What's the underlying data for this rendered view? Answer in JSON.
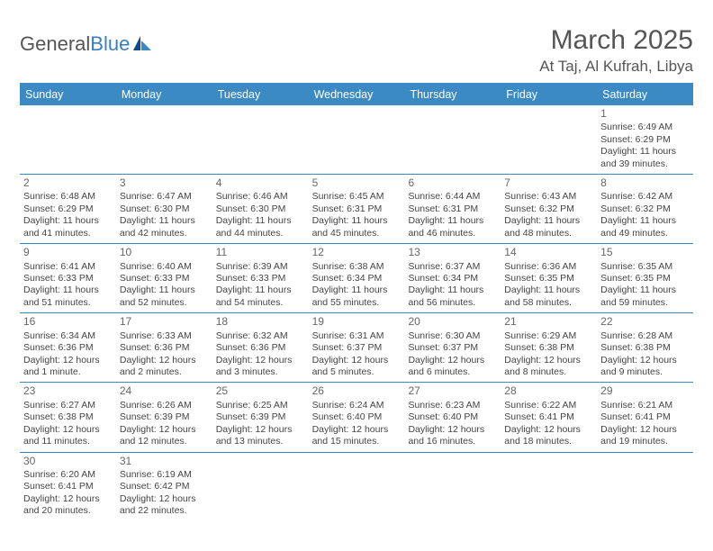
{
  "brand": {
    "name1": "General",
    "name2": "Blue"
  },
  "title": "March 2025",
  "location": "At Taj, Al Kufrah, Libya",
  "colors": {
    "header_bg": "#3b8ac4",
    "header_text": "#ffffff",
    "grid_line": "#3b8ac4",
    "text": "#444444",
    "title_text": "#555555"
  },
  "weekdays": [
    "Sunday",
    "Monday",
    "Tuesday",
    "Wednesday",
    "Thursday",
    "Friday",
    "Saturday"
  ],
  "weeks": [
    [
      {
        "empty": true
      },
      {
        "empty": true
      },
      {
        "empty": true
      },
      {
        "empty": true
      },
      {
        "empty": true
      },
      {
        "empty": true
      },
      {
        "day": "1",
        "sunrise": "Sunrise: 6:49 AM",
        "sunset": "Sunset: 6:29 PM",
        "daylight": "Daylight: 11 hours and 39 minutes."
      }
    ],
    [
      {
        "day": "2",
        "sunrise": "Sunrise: 6:48 AM",
        "sunset": "Sunset: 6:29 PM",
        "daylight": "Daylight: 11 hours and 41 minutes."
      },
      {
        "day": "3",
        "sunrise": "Sunrise: 6:47 AM",
        "sunset": "Sunset: 6:30 PM",
        "daylight": "Daylight: 11 hours and 42 minutes."
      },
      {
        "day": "4",
        "sunrise": "Sunrise: 6:46 AM",
        "sunset": "Sunset: 6:30 PM",
        "daylight": "Daylight: 11 hours and 44 minutes."
      },
      {
        "day": "5",
        "sunrise": "Sunrise: 6:45 AM",
        "sunset": "Sunset: 6:31 PM",
        "daylight": "Daylight: 11 hours and 45 minutes."
      },
      {
        "day": "6",
        "sunrise": "Sunrise: 6:44 AM",
        "sunset": "Sunset: 6:31 PM",
        "daylight": "Daylight: 11 hours and 46 minutes."
      },
      {
        "day": "7",
        "sunrise": "Sunrise: 6:43 AM",
        "sunset": "Sunset: 6:32 PM",
        "daylight": "Daylight: 11 hours and 48 minutes."
      },
      {
        "day": "8",
        "sunrise": "Sunrise: 6:42 AM",
        "sunset": "Sunset: 6:32 PM",
        "daylight": "Daylight: 11 hours and 49 minutes."
      }
    ],
    [
      {
        "day": "9",
        "sunrise": "Sunrise: 6:41 AM",
        "sunset": "Sunset: 6:33 PM",
        "daylight": "Daylight: 11 hours and 51 minutes."
      },
      {
        "day": "10",
        "sunrise": "Sunrise: 6:40 AM",
        "sunset": "Sunset: 6:33 PM",
        "daylight": "Daylight: 11 hours and 52 minutes."
      },
      {
        "day": "11",
        "sunrise": "Sunrise: 6:39 AM",
        "sunset": "Sunset: 6:33 PM",
        "daylight": "Daylight: 11 hours and 54 minutes."
      },
      {
        "day": "12",
        "sunrise": "Sunrise: 6:38 AM",
        "sunset": "Sunset: 6:34 PM",
        "daylight": "Daylight: 11 hours and 55 minutes."
      },
      {
        "day": "13",
        "sunrise": "Sunrise: 6:37 AM",
        "sunset": "Sunset: 6:34 PM",
        "daylight": "Daylight: 11 hours and 56 minutes."
      },
      {
        "day": "14",
        "sunrise": "Sunrise: 6:36 AM",
        "sunset": "Sunset: 6:35 PM",
        "daylight": "Daylight: 11 hours and 58 minutes."
      },
      {
        "day": "15",
        "sunrise": "Sunrise: 6:35 AM",
        "sunset": "Sunset: 6:35 PM",
        "daylight": "Daylight: 11 hours and 59 minutes."
      }
    ],
    [
      {
        "day": "16",
        "sunrise": "Sunrise: 6:34 AM",
        "sunset": "Sunset: 6:36 PM",
        "daylight": "Daylight: 12 hours and 1 minute."
      },
      {
        "day": "17",
        "sunrise": "Sunrise: 6:33 AM",
        "sunset": "Sunset: 6:36 PM",
        "daylight": "Daylight: 12 hours and 2 minutes."
      },
      {
        "day": "18",
        "sunrise": "Sunrise: 6:32 AM",
        "sunset": "Sunset: 6:36 PM",
        "daylight": "Daylight: 12 hours and 3 minutes."
      },
      {
        "day": "19",
        "sunrise": "Sunrise: 6:31 AM",
        "sunset": "Sunset: 6:37 PM",
        "daylight": "Daylight: 12 hours and 5 minutes."
      },
      {
        "day": "20",
        "sunrise": "Sunrise: 6:30 AM",
        "sunset": "Sunset: 6:37 PM",
        "daylight": "Daylight: 12 hours and 6 minutes."
      },
      {
        "day": "21",
        "sunrise": "Sunrise: 6:29 AM",
        "sunset": "Sunset: 6:38 PM",
        "daylight": "Daylight: 12 hours and 8 minutes."
      },
      {
        "day": "22",
        "sunrise": "Sunrise: 6:28 AM",
        "sunset": "Sunset: 6:38 PM",
        "daylight": "Daylight: 12 hours and 9 minutes."
      }
    ],
    [
      {
        "day": "23",
        "sunrise": "Sunrise: 6:27 AM",
        "sunset": "Sunset: 6:38 PM",
        "daylight": "Daylight: 12 hours and 11 minutes."
      },
      {
        "day": "24",
        "sunrise": "Sunrise: 6:26 AM",
        "sunset": "Sunset: 6:39 PM",
        "daylight": "Daylight: 12 hours and 12 minutes."
      },
      {
        "day": "25",
        "sunrise": "Sunrise: 6:25 AM",
        "sunset": "Sunset: 6:39 PM",
        "daylight": "Daylight: 12 hours and 13 minutes."
      },
      {
        "day": "26",
        "sunrise": "Sunrise: 6:24 AM",
        "sunset": "Sunset: 6:40 PM",
        "daylight": "Daylight: 12 hours and 15 minutes."
      },
      {
        "day": "27",
        "sunrise": "Sunrise: 6:23 AM",
        "sunset": "Sunset: 6:40 PM",
        "daylight": "Daylight: 12 hours and 16 minutes."
      },
      {
        "day": "28",
        "sunrise": "Sunrise: 6:22 AM",
        "sunset": "Sunset: 6:41 PM",
        "daylight": "Daylight: 12 hours and 18 minutes."
      },
      {
        "day": "29",
        "sunrise": "Sunrise: 6:21 AM",
        "sunset": "Sunset: 6:41 PM",
        "daylight": "Daylight: 12 hours and 19 minutes."
      }
    ],
    [
      {
        "day": "30",
        "sunrise": "Sunrise: 6:20 AM",
        "sunset": "Sunset: 6:41 PM",
        "daylight": "Daylight: 12 hours and 20 minutes."
      },
      {
        "day": "31",
        "sunrise": "Sunrise: 6:19 AM",
        "sunset": "Sunset: 6:42 PM",
        "daylight": "Daylight: 12 hours and 22 minutes."
      },
      {
        "empty": true
      },
      {
        "empty": true
      },
      {
        "empty": true
      },
      {
        "empty": true
      },
      {
        "empty": true
      }
    ]
  ]
}
